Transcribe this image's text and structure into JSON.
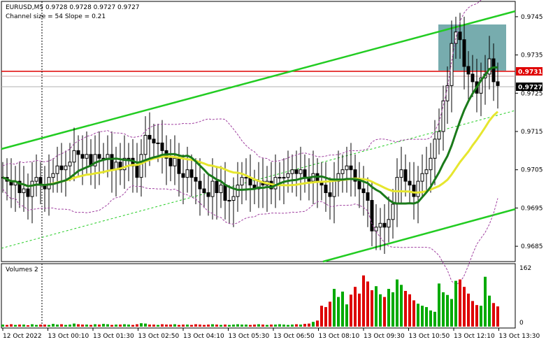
{
  "header": {
    "symbol_line": "EURUSD,M5  0.9728 0.9728 0.9727 0.9727",
    "indicator_line": "Channel size = 54 Slope = 0.21"
  },
  "colors": {
    "up_candle": "#000000",
    "down_candle": "#000000",
    "channel_lines": "#22cc22",
    "ma_fast": "#1a7a1a",
    "ma_slow": "#e6e62e",
    "bands": "#a040a0",
    "resistance_line": "#e00000",
    "box_fill": "#5f9ea0",
    "volume_up": "#00aa00",
    "volume_down": "#dd0000"
  },
  "chart_data": [
    {
      "type": "candlestick",
      "title": "EURUSD,M5",
      "ohlc_readout": [
        0.9728,
        0.9728,
        0.9727,
        0.9727
      ],
      "ylim": [
        0.9681,
        0.9749
      ],
      "y_ticks": [
        "0.9745",
        "0.9735",
        "0.9725",
        "0.9715",
        "0.9705",
        "0.9695",
        "0.9685"
      ],
      "x_ticks": [
        "12 Oct 2022",
        "13 Oct 00:10",
        "13 Oct 01:30",
        "13 Oct 02:50",
        "13 Oct 04:10",
        "13 Oct 05:30",
        "13 Oct 06:50",
        "13 Oct 08:10",
        "13 Oct 09:30",
        "13 Oct 10:50",
        "13 Oct 12:10",
        "13 Oct 13:30"
      ],
      "price_labels": [
        {
          "text": "0.9731",
          "role": "resistance"
        },
        {
          "text": "0.9727",
          "role": "current"
        }
      ],
      "closes": [
        0.9703,
        0.9702,
        0.9701,
        0.9702,
        0.9699,
        0.97,
        0.9698,
        0.9702,
        0.9703,
        0.9701,
        0.97,
        0.9703,
        0.9704,
        0.9706,
        0.9705,
        0.9706,
        0.9707,
        0.971,
        0.9709,
        0.9708,
        0.9709,
        0.9706,
        0.9709,
        0.9708,
        0.9708,
        0.9709,
        0.9705,
        0.9707,
        0.9705,
        0.9708,
        0.9708,
        0.9706,
        0.9703,
        0.9709,
        0.9714,
        0.9713,
        0.9712,
        0.9712,
        0.971,
        0.9708,
        0.9706,
        0.9708,
        0.9704,
        0.9703,
        0.9705,
        0.9703,
        0.9702,
        0.97,
        0.9699,
        0.9698,
        0.9702,
        0.9699,
        0.9701,
        0.9697,
        0.9697,
        0.9698,
        0.9701,
        0.9703,
        0.9703,
        0.9701,
        0.97,
        0.9702,
        0.9701,
        0.9702,
        0.97,
        0.9703,
        0.9703,
        0.9703,
        0.9704,
        0.9705,
        0.9704,
        0.9705,
        0.9703,
        0.9702,
        0.9704,
        0.9702,
        0.9701,
        0.9699,
        0.9698,
        0.9702,
        0.9704,
        0.9705,
        0.9706,
        0.9705,
        0.9702,
        0.97,
        0.9699,
        0.9697,
        0.9689,
        0.969,
        0.9691,
        0.969,
        0.9692,
        0.9696,
        0.9703,
        0.9705,
        0.9702,
        0.9701,
        0.9698,
        0.9702,
        0.9704,
        0.9705,
        0.9708,
        0.9713,
        0.9715,
        0.9723,
        0.9727,
        0.9738,
        0.9741,
        0.9739,
        0.9732,
        0.973,
        0.9728,
        0.9725,
        0.9729,
        0.973,
        0.9734,
        0.9728,
        0.9727
      ]
    },
    {
      "type": "bar",
      "title": "Volumes 2",
      "ylim": [
        0,
        162
      ],
      "y_ticks": [
        "162",
        "0"
      ],
      "values": [
        6,
        5,
        7,
        5,
        6,
        6,
        4,
        7,
        5,
        6,
        6,
        5,
        8,
        6,
        7,
        5,
        6,
        9,
        7,
        6,
        6,
        5,
        7,
        6,
        8,
        7,
        5,
        6,
        6,
        7,
        6,
        5,
        7,
        10,
        9,
        6,
        6,
        5,
        7,
        6,
        6,
        7,
        5,
        6,
        6,
        5,
        7,
        6,
        5,
        6,
        7,
        6,
        5,
        6,
        5,
        6,
        7,
        6,
        6,
        5,
        6,
        7,
        6,
        5,
        6,
        6,
        7,
        6,
        5,
        6,
        7,
        6,
        8,
        9,
        14,
        18,
        62,
        58,
        74,
        112,
        88,
        104,
        66,
        95,
        118,
        98,
        152,
        134,
        108,
        120,
        96,
        88,
        112,
        102,
        140,
        124,
        106,
        96,
        78,
        68,
        62,
        58,
        48,
        44,
        128,
        102,
        94,
        82,
        136,
        140,
        118,
        98,
        76,
        64,
        62,
        148,
        92,
        70,
        60
      ]
    }
  ]
}
